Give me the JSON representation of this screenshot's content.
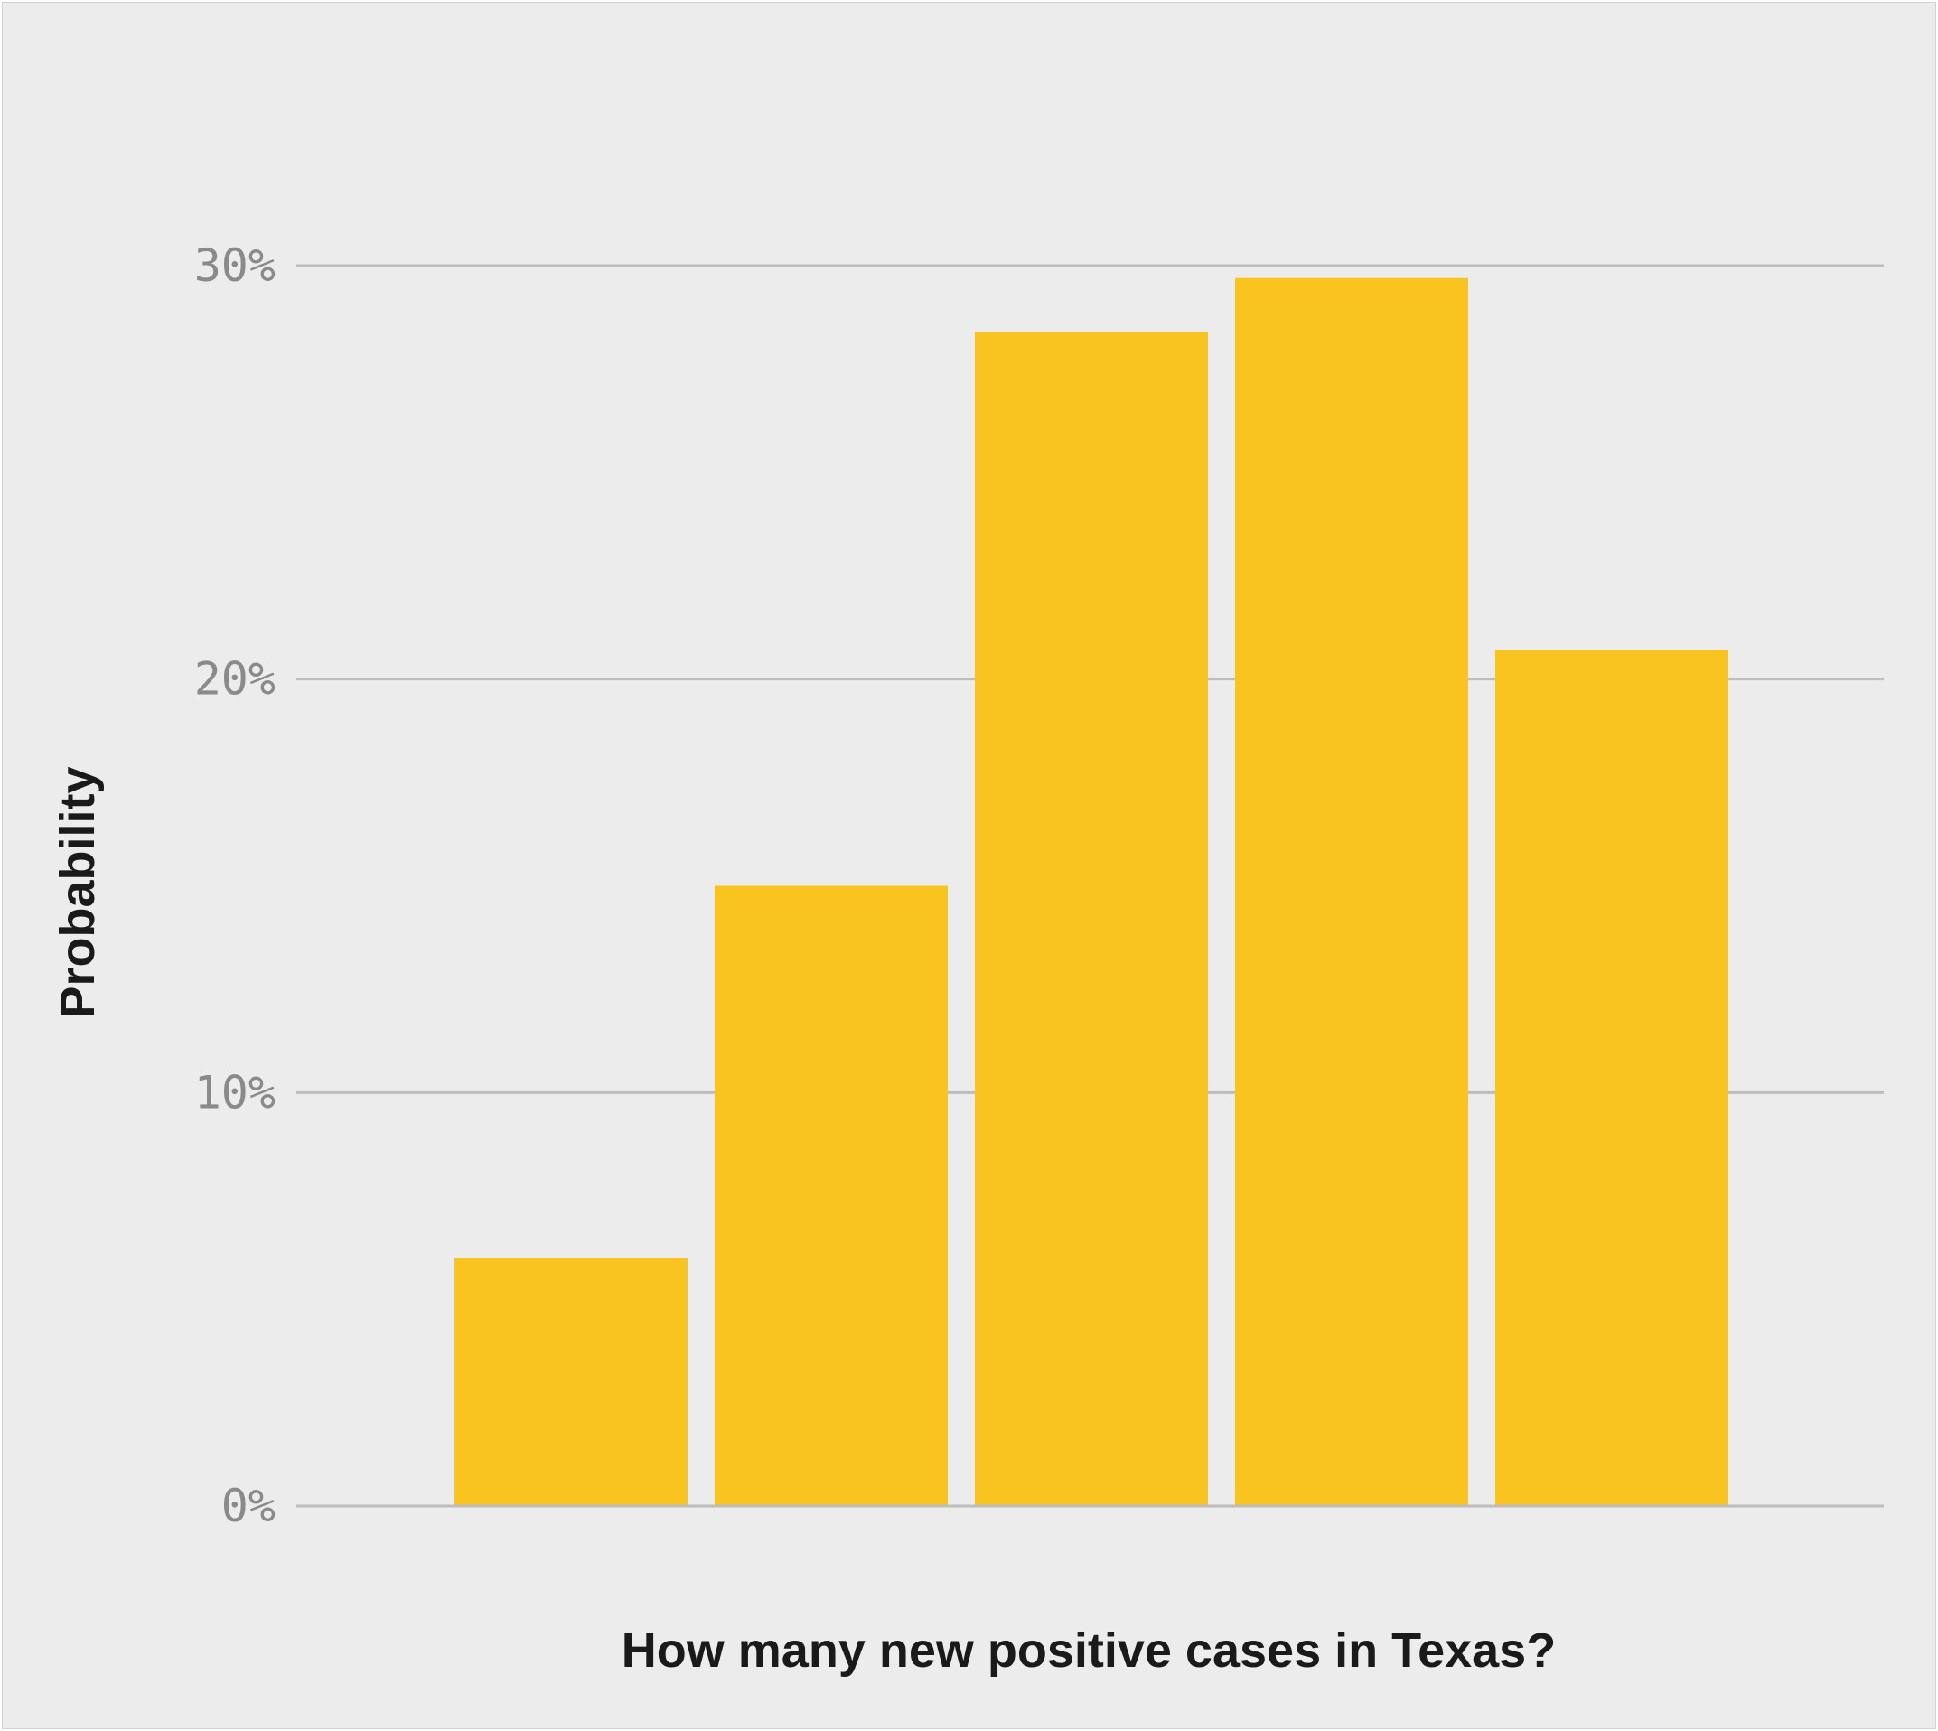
{
  "chart_data": {
    "type": "bar",
    "categories": [
      "",
      "",
      "",
      "",
      ""
    ],
    "values": [
      6.0,
      15.0,
      28.4,
      29.7,
      20.7
    ],
    "xlabel": "How many new positive cases in Texas?",
    "ylabel": "Probability",
    "ylim": [
      0,
      30
    ],
    "yticks": [
      {
        "value": 0,
        "label": "0%"
      },
      {
        "value": 10,
        "label": "10%"
      },
      {
        "value": 20,
        "label": "20%"
      },
      {
        "value": 30,
        "label": "30%"
      }
    ],
    "grid": true,
    "colors": {
      "bar": "#f9c41f",
      "grid": "#bdbdbd",
      "background": "#ececec"
    }
  }
}
